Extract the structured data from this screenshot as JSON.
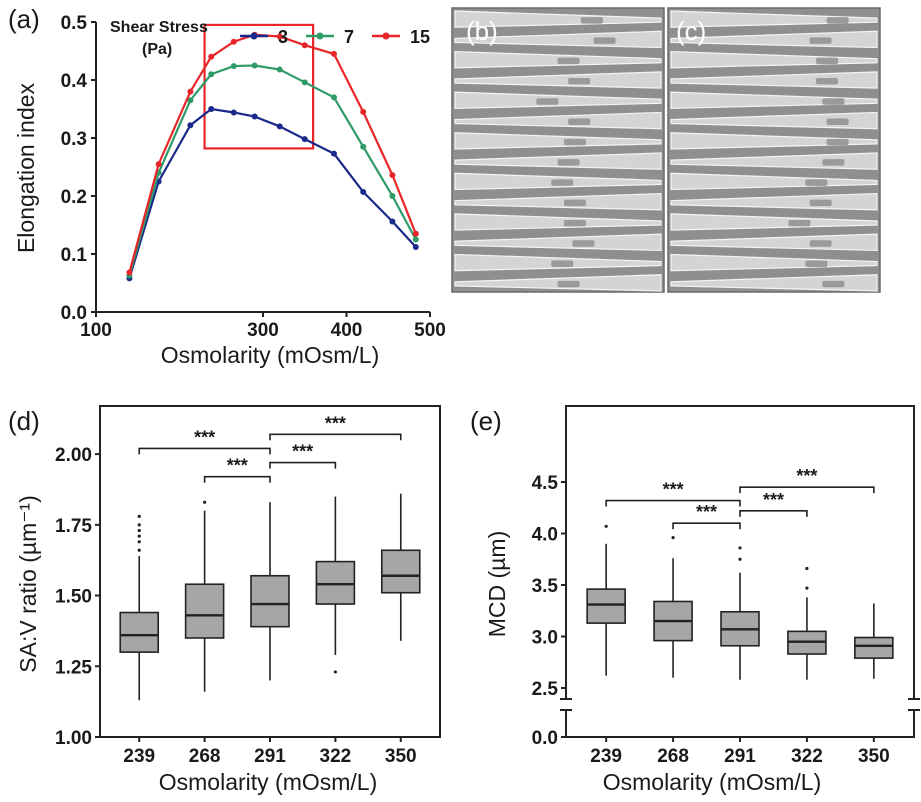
{
  "chart_data": [
    {
      "panel": "(a)",
      "type": "line",
      "xlabel": "Osmolarity (mOsm/L)",
      "ylabel": "Elongation index",
      "xlim": [
        100,
        500
      ],
      "ylim": [
        0.0,
        0.5
      ],
      "xticks": [
        "100",
        "300",
        "400",
        "500"
      ],
      "xtick_values": [
        100,
        300,
        400,
        500
      ],
      "yticks": [
        "0.0",
        "0.1",
        "0.2",
        "0.3",
        "0.4",
        "0.5"
      ],
      "ytick_values": [
        0.0,
        0.1,
        0.2,
        0.3,
        0.4,
        0.5
      ],
      "legend_title": "Shear Stress\n(Pa)",
      "legend_placement": "top",
      "highlight_box": {
        "x": [
          230,
          360
        ],
        "y": [
          0.282,
          0.495
        ],
        "color": "#e8262a"
      },
      "x": [
        140,
        175,
        213,
        238,
        265,
        290,
        320,
        350,
        385,
        420,
        455,
        483
      ],
      "series": [
        {
          "name": "3",
          "color": "#1b2a8a",
          "values": [
            0.058,
            0.225,
            0.322,
            0.35,
            0.344,
            0.337,
            0.32,
            0.298,
            0.273,
            0.207,
            0.156,
            0.112
          ]
        },
        {
          "name": "7",
          "color": "#2e9b68",
          "values": [
            0.063,
            0.24,
            0.365,
            0.41,
            0.424,
            0.425,
            0.418,
            0.396,
            0.37,
            0.285,
            0.2,
            0.125
          ]
        },
        {
          "name": "15",
          "color": "#e8262a",
          "values": [
            0.068,
            0.255,
            0.38,
            0.44,
            0.466,
            0.478,
            0.475,
            0.46,
            0.445,
            0.345,
            0.236,
            0.135
          ]
        }
      ]
    },
    {
      "panel": "(d)",
      "type": "box",
      "xlabel": "Osmolarity (mOsm/L)",
      "ylabel": "SA:V ratio (µm⁻¹)",
      "categories": [
        "239",
        "268",
        "291",
        "322",
        "350"
      ],
      "ylim": [
        1.0,
        2.17
      ],
      "yticks": [
        "1.00",
        "1.25",
        "1.50",
        "1.75",
        "2.00"
      ],
      "ytick_values": [
        1.0,
        1.25,
        1.5,
        1.75,
        2.0
      ],
      "boxes": [
        {
          "whisker_low": 1.13,
          "q1": 1.3,
          "median": 1.36,
          "q3": 1.44,
          "whisker_high": 1.64,
          "outliers": [
            1.66,
            1.69,
            1.71,
            1.73,
            1.75,
            1.78
          ]
        },
        {
          "whisker_low": 1.16,
          "q1": 1.35,
          "median": 1.43,
          "q3": 1.54,
          "whisker_high": 1.8,
          "outliers": [
            1.83
          ]
        },
        {
          "whisker_low": 1.2,
          "q1": 1.39,
          "median": 1.47,
          "q3": 1.57,
          "whisker_high": 1.83,
          "outliers": []
        },
        {
          "whisker_low": 1.29,
          "q1": 1.47,
          "median": 1.54,
          "q3": 1.62,
          "whisker_high": 1.85,
          "outliers": [
            1.23
          ]
        },
        {
          "whisker_low": 1.34,
          "q1": 1.51,
          "median": 1.57,
          "q3": 1.66,
          "whisker_high": 1.86,
          "outliers": []
        }
      ],
      "significance": [
        {
          "from": 0,
          "to": 2,
          "y": 2.02,
          "label": "***"
        },
        {
          "from": 1,
          "to": 2,
          "y": 1.92,
          "label": "***"
        },
        {
          "from": 2,
          "to": 3,
          "y": 1.97,
          "label": "***"
        },
        {
          "from": 2,
          "to": 4,
          "y": 2.07,
          "label": "***"
        }
      ]
    },
    {
      "panel": "(e)",
      "type": "box",
      "xlabel": "Osmolarity (mOsm/L)",
      "ylabel": "MCD (µm)",
      "categories": [
        "239",
        "268",
        "291",
        "322",
        "350"
      ],
      "axis_break": true,
      "ylim": [
        2.0,
        4.8
      ],
      "yticks": [
        "0.0",
        "2.5",
        "3.0",
        "3.5",
        "4.0",
        "4.5"
      ],
      "ytick_values": [
        0.0,
        2.5,
        3.0,
        3.5,
        4.0,
        4.5
      ],
      "boxes": [
        {
          "whisker_low": 2.62,
          "q1": 3.13,
          "median": 3.31,
          "q3": 3.46,
          "whisker_high": 3.9,
          "outliers": [
            4.07
          ]
        },
        {
          "whisker_low": 2.6,
          "q1": 2.96,
          "median": 3.15,
          "q3": 3.34,
          "whisker_high": 3.76,
          "outliers": [
            3.96
          ]
        },
        {
          "whisker_low": 2.58,
          "q1": 2.91,
          "median": 3.07,
          "q3": 3.24,
          "whisker_high": 3.62,
          "outliers": [
            3.75,
            3.86
          ]
        },
        {
          "whisker_low": 2.58,
          "q1": 2.83,
          "median": 2.95,
          "q3": 3.05,
          "whisker_high": 3.38,
          "outliers": [
            3.47,
            3.66
          ]
        },
        {
          "whisker_low": 2.59,
          "q1": 2.79,
          "median": 2.91,
          "q3": 2.99,
          "whisker_high": 3.32,
          "outliers": []
        }
      ],
      "significance": [
        {
          "from": 0,
          "to": 2,
          "y": 4.32,
          "label": "***"
        },
        {
          "from": 1,
          "to": 2,
          "y": 4.1,
          "label": "***"
        },
        {
          "from": 2,
          "to": 3,
          "y": 4.22,
          "label": "***"
        },
        {
          "from": 2,
          "to": 4,
          "y": 4.45,
          "label": "***"
        }
      ]
    }
  ],
  "images": [
    {
      "panel": "(b)",
      "channels": 14,
      "cell_offsets": [
        0.66,
        0.72,
        0.55,
        0.6,
        0.45,
        0.6,
        0.58,
        0.55,
        0.52,
        0.58,
        0.58,
        0.62,
        0.52,
        0.55
      ]
    },
    {
      "panel": "(c)",
      "channels": 14,
      "cell_offsets": [
        0.8,
        0.72,
        0.75,
        0.75,
        0.78,
        0.8,
        0.8,
        0.78,
        0.7,
        0.72,
        0.62,
        0.72,
        0.7,
        0.78
      ]
    }
  ]
}
